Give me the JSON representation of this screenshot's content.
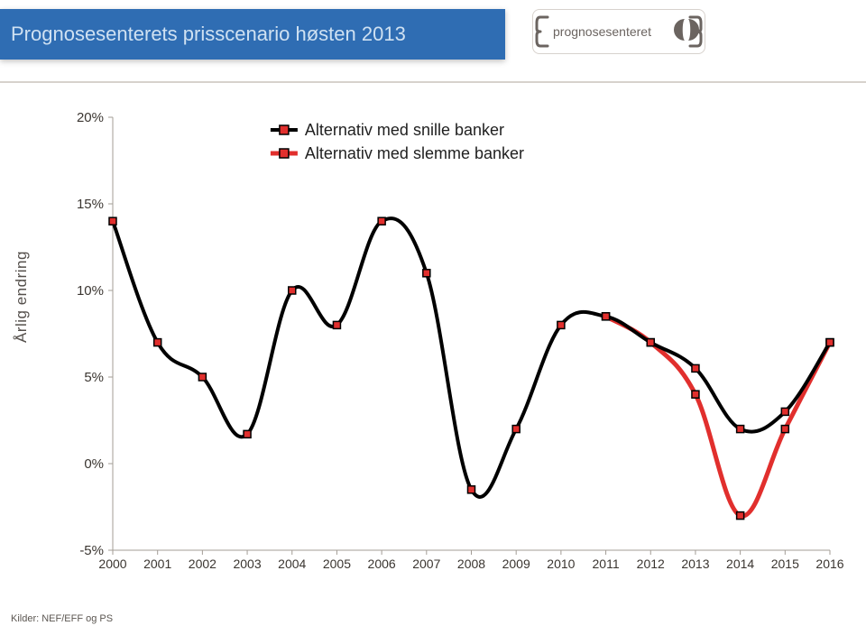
{
  "title": "Prognosesenterets prisscenario høsten 2013",
  "logo": {
    "text": "prognosesenteret"
  },
  "y_axis_title": "Årlig endring",
  "source": "Kilder: NEF/EFF og PS",
  "chart": {
    "type": "line",
    "background_color": "#ffffff",
    "plot_border_color": "#a39d96",
    "plot_border_width": 1,
    "measured_bar_color": "#2f6db3",
    "legend": {
      "items": [
        {
          "label": "Alternativ med snille banker",
          "marker_fill": "#e12f2d",
          "marker_border": "#000000",
          "line_color": "#000000",
          "line_width": 4
        },
        {
          "label": "Alternativ med slemme banker",
          "marker_fill": "#e12f2d",
          "marker_border": "#000000",
          "line_color": "#e12f2d",
          "line_width": 5
        }
      ],
      "position": "top-center"
    },
    "x": {
      "categories": [
        "2000",
        "2001",
        "2002",
        "2003",
        "2004",
        "2005",
        "2006",
        "2007",
        "2008",
        "2009",
        "2010",
        "2011",
        "2012",
        "2013",
        "2014",
        "2015",
        "2016"
      ],
      "label_fontsize": 14
    },
    "y": {
      "min": -5,
      "max": 20,
      "tick_step": 5,
      "ticks": [
        -5,
        0,
        5,
        10,
        15,
        20
      ],
      "tick_labels": [
        "-5%",
        "0%",
        "5%",
        "10%",
        "15%",
        "20%"
      ],
      "label_fontsize": 15,
      "grid": false
    },
    "series": {
      "snille": {
        "color_line": "#000000",
        "line_width": 4,
        "marker_fill": "#e12f2d",
        "marker_border": "#000000",
        "marker_size": 8,
        "values": [
          14.0,
          7.0,
          5.0,
          1.7,
          10.0,
          8.0,
          14.0,
          11.0,
          -1.5,
          2.0,
          8.0,
          8.5,
          7.0,
          5.5,
          2.0,
          3.0,
          7.0
        ]
      },
      "slemme": {
        "color_line": "#e12f2d",
        "line_width": 5,
        "marker_fill": "#e12f2d",
        "marker_border": "#000000",
        "marker_size": 8,
        "values": [
          14.0,
          7.0,
          5.0,
          1.7,
          10.0,
          8.0,
          14.0,
          11.0,
          -1.5,
          2.0,
          8.0,
          8.5,
          7.0,
          4.0,
          -3.0,
          2.0,
          7.0
        ],
        "start_index": 11
      }
    }
  }
}
